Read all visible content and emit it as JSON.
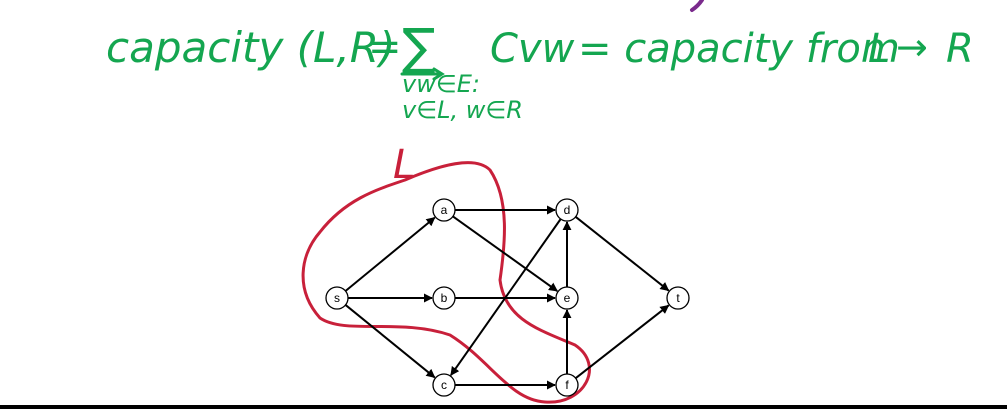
{
  "formula": {
    "lhs": "capacity (L,R)",
    "equals": "=",
    "sum_symbol": "∑",
    "sum_term": "Cvw",
    "rhs_text": "= capacity from",
    "rhs_from": "L",
    "arrow": "→",
    "rhs_to": "R",
    "subscript_line1": "vw∈E:",
    "subscript_line2": "v∈L, w∈R"
  },
  "cut_label": "L",
  "colors": {
    "green_ink": "#14a650",
    "red_ink": "#c8203a",
    "purple_mark": "#7a2a8c",
    "node_stroke": "#000000",
    "edge_stroke": "#000000"
  },
  "graph": {
    "nodes": [
      {
        "id": "s",
        "label": "s"
      },
      {
        "id": "a",
        "label": "a"
      },
      {
        "id": "b",
        "label": "b"
      },
      {
        "id": "c",
        "label": "c"
      },
      {
        "id": "d",
        "label": "d"
      },
      {
        "id": "e",
        "label": "e"
      },
      {
        "id": "f",
        "label": "f"
      },
      {
        "id": "t",
        "label": "t"
      }
    ],
    "edges": [
      {
        "from": "s",
        "to": "a"
      },
      {
        "from": "s",
        "to": "b"
      },
      {
        "from": "s",
        "to": "c"
      },
      {
        "from": "a",
        "to": "d"
      },
      {
        "from": "a",
        "to": "e"
      },
      {
        "from": "b",
        "to": "e"
      },
      {
        "from": "d",
        "to": "c"
      },
      {
        "from": "e",
        "to": "d"
      },
      {
        "from": "c",
        "to": "f"
      },
      {
        "from": "f",
        "to": "e"
      },
      {
        "from": "d",
        "to": "t"
      },
      {
        "from": "f",
        "to": "t"
      }
    ]
  }
}
